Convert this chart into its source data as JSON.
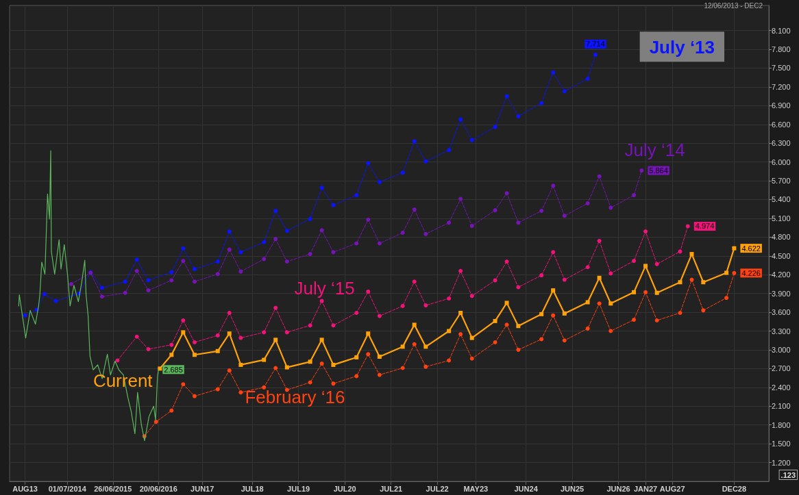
{
  "chart_data": {
    "type": "line",
    "subtitle": "12/06/2013 - DEC2",
    "annotations": [
      ".123"
    ],
    "xlim": [
      "2013-04",
      "2029-09"
    ],
    "xticks": [
      {
        "value": "2013-08",
        "label": "AUG13"
      },
      {
        "value": "2014-07-01",
        "label": "01/07/2014"
      },
      {
        "value": "2015-06-26",
        "label": "26/06/2015"
      },
      {
        "value": "2016-06-20",
        "label": "20/06/2016"
      },
      {
        "value": "2017-06",
        "label": "JUN17"
      },
      {
        "value": "2018-07",
        "label": "JUL18"
      },
      {
        "value": "2019-07",
        "label": "JUL19"
      },
      {
        "value": "2020-07",
        "label": "JUL20"
      },
      {
        "value": "2021-07",
        "label": "JUL21"
      },
      {
        "value": "2022-07",
        "label": "JUL22"
      },
      {
        "value": "2023-05",
        "label": "MAY23"
      },
      {
        "value": "2024-06",
        "label": "JUN24"
      },
      {
        "value": "2025-06",
        "label": "JUN25"
      },
      {
        "value": "2026-06",
        "label": "JUN26"
      },
      {
        "value": "2027-01",
        "label": "JAN27"
      },
      {
        "value": "2027-08",
        "label": "AUG27"
      },
      {
        "value": "2028-12",
        "label": "DEC28"
      }
    ],
    "ylim": [
      0.9,
      8.5
    ],
    "yticks": [
      {
        "value": 1.2,
        "label": "1.200"
      },
      {
        "value": 1.5,
        "label": "1.500"
      },
      {
        "value": 1.8,
        "label": "1.800"
      },
      {
        "value": 2.1,
        "label": "2.100"
      },
      {
        "value": 2.4,
        "label": "2.400"
      },
      {
        "value": 2.7,
        "label": "2.700"
      },
      {
        "value": 3.0,
        "label": "3.000"
      },
      {
        "value": 3.3,
        "label": "3.300"
      },
      {
        "value": 3.6,
        "label": "3.600"
      },
      {
        "value": 3.9,
        "label": "3.900"
      },
      {
        "value": 4.2,
        "label": "4.200"
      },
      {
        "value": 4.5,
        "label": "4.500"
      },
      {
        "value": 4.8,
        "label": "4.800"
      },
      {
        "value": 5.1,
        "label": "5.100"
      },
      {
        "value": 5.4,
        "label": "5.400"
      },
      {
        "value": 5.7,
        "label": "5.700"
      },
      {
        "value": 6.0,
        "label": "6.000"
      },
      {
        "value": 6.3,
        "label": "6.300"
      },
      {
        "value": 6.6,
        "label": "6.600"
      },
      {
        "value": 6.9,
        "label": "6.900"
      },
      {
        "value": 7.2,
        "label": "7.200"
      },
      {
        "value": 7.5,
        "label": "7.500"
      },
      {
        "value": 7.8,
        "label": "7.800"
      },
      {
        "value": 8.1,
        "label": "8.100"
      }
    ],
    "grid": true,
    "series": [
      {
        "name": "July ‘13",
        "color": "#0a14ff",
        "marker": "circle",
        "line_style": "dashed",
        "x": [
          "2013-08",
          "2013-11",
          "2014-01",
          "2014-04",
          "2014-10",
          "2015-01",
          "2015-04",
          "2015-10",
          "2016-01",
          "2016-04",
          "2016-10",
          "2017-01",
          "2017-04",
          "2017-10",
          "2018-01",
          "2018-04",
          "2018-10",
          "2019-01",
          "2019-04",
          "2019-10",
          "2020-01",
          "2020-04",
          "2020-10",
          "2021-01",
          "2021-04",
          "2021-10",
          "2022-01",
          "2022-04",
          "2022-10",
          "2023-01",
          "2023-04",
          "2023-10",
          "2024-01",
          "2024-04",
          "2024-10",
          "2025-01",
          "2025-04",
          "2025-10",
          "2025-12"
        ],
        "values": [
          3.55,
          3.64,
          3.89,
          3.78,
          3.9,
          4.24,
          3.99,
          4.09,
          4.44,
          4.11,
          4.24,
          4.62,
          4.29,
          4.41,
          4.89,
          4.56,
          4.72,
          5.22,
          4.9,
          5.09,
          5.59,
          5.31,
          5.47,
          5.98,
          5.68,
          5.83,
          6.33,
          6.01,
          6.19,
          6.68,
          6.35,
          6.56,
          7.05,
          6.73,
          6.94,
          7.43,
          7.13,
          7.33,
          7.714
        ],
        "value_labels": [
          null,
          null,
          null,
          null,
          null,
          null,
          null,
          null,
          null,
          null,
          null,
          null,
          null,
          null,
          null,
          null,
          null,
          null,
          null,
          null,
          null,
          null,
          null,
          null,
          null,
          null,
          null,
          null,
          null,
          null,
          null,
          null,
          null,
          null,
          null,
          null,
          null,
          null,
          "7.714"
        ]
      },
      {
        "name": "July ‘14",
        "color": "#7614b8",
        "marker": "circle",
        "line_style": "dashed",
        "x": [
          "2014-08",
          "2015-01",
          "2015-04",
          "2015-10",
          "2016-01",
          "2016-04",
          "2016-10",
          "2017-01",
          "2017-04",
          "2017-10",
          "2018-01",
          "2018-04",
          "2018-10",
          "2019-01",
          "2019-04",
          "2019-10",
          "2020-01",
          "2020-04",
          "2020-10",
          "2021-01",
          "2021-04",
          "2021-10",
          "2022-01",
          "2022-04",
          "2022-10",
          "2023-01",
          "2023-04",
          "2023-10",
          "2024-01",
          "2024-04",
          "2024-10",
          "2025-01",
          "2025-04",
          "2025-10",
          "2026-01",
          "2026-04",
          "2026-10",
          "2026-12"
        ],
        "values": [
          4.05,
          4.23,
          3.85,
          3.91,
          4.26,
          3.95,
          4.11,
          4.42,
          4.09,
          4.21,
          4.6,
          4.25,
          4.45,
          4.77,
          4.41,
          4.53,
          4.91,
          4.56,
          4.7,
          5.08,
          4.7,
          4.87,
          5.24,
          4.85,
          5.03,
          5.41,
          4.98,
          5.23,
          5.5,
          5.03,
          5.22,
          5.62,
          5.14,
          5.34,
          5.77,
          5.27,
          5.47,
          5.864
        ],
        "value_labels": [
          null,
          null,
          null,
          null,
          null,
          null,
          null,
          null,
          null,
          null,
          null,
          null,
          null,
          null,
          null,
          null,
          null,
          null,
          null,
          null,
          null,
          null,
          null,
          null,
          null,
          null,
          null,
          null,
          null,
          null,
          null,
          null,
          null,
          null,
          null,
          null,
          null,
          "5.864"
        ]
      },
      {
        "name": "July ‘15",
        "color": "#f0147a",
        "marker": "circle",
        "line_style": "dashed",
        "x": [
          "2015-08",
          "2016-01",
          "2016-04",
          "2016-10",
          "2017-01",
          "2017-04",
          "2017-10",
          "2018-01",
          "2018-04",
          "2018-10",
          "2019-01",
          "2019-04",
          "2019-10",
          "2020-01",
          "2020-04",
          "2020-10",
          "2021-01",
          "2021-04",
          "2021-10",
          "2022-01",
          "2022-04",
          "2022-10",
          "2023-01",
          "2023-04",
          "2023-10",
          "2024-01",
          "2024-04",
          "2024-10",
          "2025-01",
          "2025-04",
          "2025-10",
          "2026-01",
          "2026-04",
          "2026-10",
          "2027-01",
          "2027-04",
          "2027-10",
          "2027-12"
        ],
        "values": [
          2.83,
          3.21,
          3.01,
          3.08,
          3.47,
          3.12,
          3.23,
          3.59,
          3.19,
          3.28,
          3.67,
          3.28,
          3.39,
          3.78,
          3.39,
          3.59,
          3.93,
          3.54,
          3.7,
          4.09,
          3.71,
          3.82,
          4.26,
          3.86,
          4.11,
          4.41,
          4.0,
          4.19,
          4.56,
          4.12,
          4.32,
          4.74,
          4.22,
          4.42,
          4.89,
          4.37,
          4.57,
          4.974
        ],
        "value_labels": [
          null,
          null,
          null,
          null,
          null,
          null,
          null,
          null,
          null,
          null,
          null,
          null,
          null,
          null,
          null,
          null,
          null,
          null,
          null,
          null,
          null,
          null,
          null,
          null,
          null,
          null,
          null,
          null,
          null,
          null,
          null,
          null,
          null,
          null,
          null,
          null,
          null,
          "4.974"
        ]
      },
      {
        "name": "Current",
        "color": "#ffa20a",
        "marker": "square",
        "line_style": "solid",
        "x": [
          "2016-07",
          "2016-10",
          "2017-01",
          "2017-04",
          "2017-10",
          "2018-01",
          "2018-04",
          "2018-10",
          "2019-01",
          "2019-04",
          "2019-10",
          "2020-01",
          "2020-04",
          "2020-10",
          "2021-01",
          "2021-04",
          "2021-10",
          "2022-01",
          "2022-04",
          "2022-10",
          "2023-01",
          "2023-04",
          "2023-10",
          "2024-01",
          "2024-04",
          "2024-10",
          "2025-01",
          "2025-04",
          "2025-10",
          "2026-01",
          "2026-04",
          "2026-10",
          "2027-01",
          "2027-04",
          "2027-10",
          "2028-01",
          "2028-04",
          "2028-10",
          "2028-12"
        ],
        "values": [
          2.7,
          2.92,
          3.28,
          2.92,
          2.98,
          3.26,
          2.76,
          2.84,
          3.16,
          2.72,
          2.81,
          3.16,
          2.76,
          2.88,
          3.26,
          2.89,
          3.05,
          3.4,
          3.05,
          3.3,
          3.59,
          3.19,
          3.46,
          3.75,
          3.38,
          3.57,
          3.95,
          3.58,
          3.76,
          4.15,
          3.74,
          3.92,
          4.34,
          3.91,
          4.08,
          4.53,
          4.08,
          4.23,
          4.622
        ],
        "value_labels": [
          null,
          null,
          null,
          null,
          null,
          null,
          null,
          null,
          null,
          null,
          null,
          null,
          null,
          null,
          null,
          null,
          null,
          null,
          null,
          null,
          null,
          null,
          null,
          null,
          null,
          null,
          null,
          null,
          null,
          null,
          null,
          null,
          null,
          null,
          null,
          null,
          null,
          null,
          "4.622"
        ]
      },
      {
        "name": "February ‘16",
        "color": "#ff4210",
        "marker": "circle",
        "line_style": "dashed",
        "x": [
          "2016-03",
          "2016-06",
          "2016-10",
          "2017-01",
          "2017-04",
          "2017-10",
          "2018-01",
          "2018-04",
          "2018-10",
          "2019-01",
          "2019-04",
          "2019-10",
          "2020-01",
          "2020-04",
          "2020-10",
          "2021-01",
          "2021-04",
          "2021-10",
          "2022-01",
          "2022-04",
          "2022-10",
          "2023-01",
          "2023-04",
          "2023-10",
          "2024-01",
          "2024-04",
          "2024-10",
          "2025-01",
          "2025-04",
          "2025-10",
          "2026-01",
          "2026-04",
          "2026-10",
          "2027-01",
          "2027-04",
          "2027-10",
          "2028-01",
          "2028-04",
          "2028-10",
          "2028-12"
        ],
        "values": [
          1.62,
          1.85,
          2.03,
          2.45,
          2.26,
          2.37,
          2.67,
          2.32,
          2.4,
          2.71,
          2.36,
          2.48,
          2.78,
          2.46,
          2.58,
          2.93,
          2.6,
          2.71,
          3.09,
          2.73,
          2.83,
          3.25,
          2.86,
          3.12,
          3.4,
          3.0,
          3.17,
          3.55,
          3.15,
          3.34,
          3.74,
          3.3,
          3.48,
          3.92,
          3.47,
          3.59,
          4.12,
          3.63,
          3.83,
          4.226
        ],
        "value_labels": [
          null,
          null,
          null,
          null,
          null,
          null,
          null,
          null,
          null,
          null,
          null,
          null,
          null,
          null,
          null,
          null,
          null,
          null,
          null,
          null,
          null,
          null,
          null,
          null,
          null,
          null,
          null,
          null,
          null,
          null,
          null,
          null,
          null,
          null,
          null,
          null,
          null,
          null,
          null,
          "4.226"
        ]
      },
      {
        "color": "#5cb85c",
        "marker": "none",
        "line_style": "solid",
        "x": [
          "2013-06-12",
          "2013-06-17",
          "2013-08-06",
          "2013-09-11",
          "2013-10-22",
          "2013-11-16",
          "2013-11-26",
          "2013-12-11",
          "2014-01-05",
          "2014-01-26",
          "2014-02-10",
          "2014-02-20",
          "2014-02-25",
          "2014-03-23",
          "2014-04-27",
          "2014-05-12",
          "2014-06-07",
          "2014-07-02",
          "2014-07-23",
          "2014-08-22",
          "2014-09-26",
          "2014-10-22",
          "2014-11-16",
          "2014-11-26",
          "2014-12-12",
          "2014-12-27",
          "2015-01-21",
          "2015-02-26",
          "2015-04-02",
          "2015-05-13",
          "2015-06-07",
          "2015-07-13",
          "2015-08-12",
          "2015-09-17",
          "2015-10-22",
          "2015-11-17",
          "2015-12-17",
          "2016-01-07",
          "2016-02-06",
          "2016-03-02",
          "2016-04-07",
          "2016-05-13",
          "2016-05-28",
          "2016-06-12",
          "2016-06-20"
        ],
        "values": [
          3.7,
          3.88,
          3.19,
          3.63,
          3.41,
          3.7,
          3.88,
          4.4,
          4.21,
          5.49,
          5.09,
          6.18,
          4.57,
          4.21,
          4.76,
          4.29,
          4.68,
          4.21,
          3.7,
          4.03,
          3.77,
          4.07,
          4.43,
          3.88,
          3.55,
          2.9,
          2.68,
          2.76,
          2.54,
          2.93,
          2.6,
          2.82,
          2.68,
          2.6,
          2.24,
          2.02,
          1.66,
          2.32,
          1.8,
          1.55,
          1.94,
          2.1,
          1.88,
          2.57,
          2.685
        ],
        "value_labels": [
          null,
          null,
          null,
          null,
          null,
          null,
          null,
          null,
          null,
          null,
          null,
          null,
          null,
          null,
          null,
          null,
          null,
          null,
          null,
          null,
          null,
          null,
          null,
          null,
          null,
          null,
          null,
          null,
          null,
          null,
          null,
          null,
          null,
          null,
          null,
          null,
          null,
          null,
          null,
          null,
          null,
          null,
          null,
          null,
          "2.685"
        ]
      }
    ]
  }
}
